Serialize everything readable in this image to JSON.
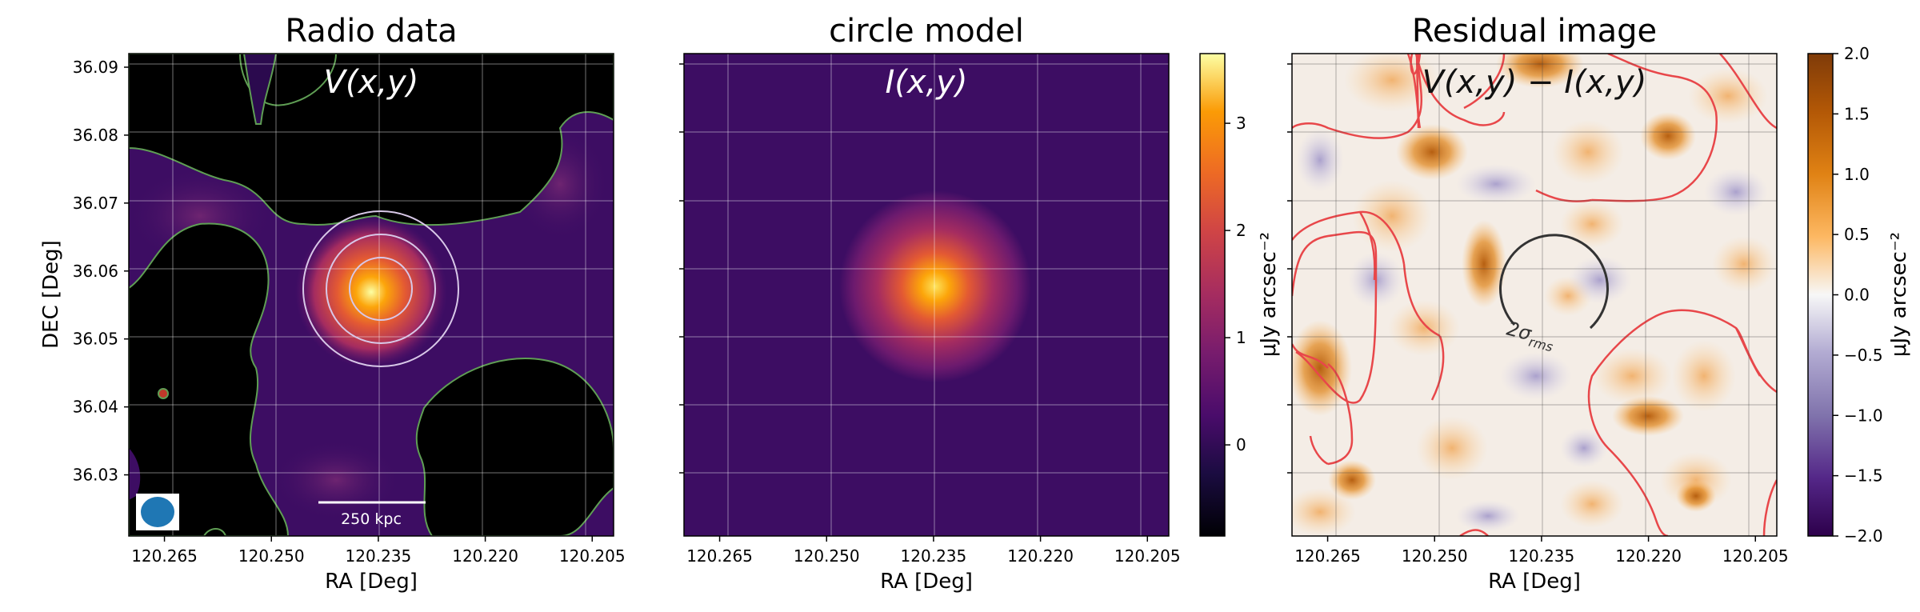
{
  "chart_data": [
    {
      "type": "heatmap",
      "title": "Radio data",
      "annotation": "V(x,y)",
      "xlabel": "RA [Deg]",
      "ylabel": "DEC [Deg]",
      "xlim": [
        120.27,
        120.202
      ],
      "ylim": [
        36.021,
        36.092
      ],
      "xticks": [
        "120.265",
        "120.250",
        "120.235",
        "120.220",
        "120.205"
      ],
      "yticks": [
        "36.09",
        "36.08",
        "36.07",
        "36.06",
        "36.05",
        "36.04",
        "36.03"
      ],
      "grid": true,
      "colormap": "inferno",
      "source_center": [
        120.2347,
        36.0568
      ],
      "contour_color": "#5f9e54",
      "circle_color": "#d8c8e8",
      "beam_color": "#1f77b4",
      "scalebar_label": "250 kpc"
    },
    {
      "type": "heatmap",
      "title": "circle model",
      "annotation": "I(x,y)",
      "xlabel": "RA [Deg]",
      "xlim": [
        120.27,
        120.202
      ],
      "xticks": [
        "120.265",
        "120.250",
        "120.235",
        "120.220",
        "120.205"
      ],
      "grid": true,
      "colormap": "inferno",
      "source_center": [
        120.2347,
        36.0568
      ],
      "colorbar": {
        "label": "μJy arcsec⁻²",
        "range": [
          -0.85,
          3.65
        ],
        "ticks": [
          "0",
          "1",
          "2",
          "3"
        ]
      }
    },
    {
      "type": "heatmap",
      "title": "Residual image",
      "annotation": "V(x,y) − I(x,y)",
      "xlabel": "RA [Deg]",
      "xlim": [
        120.27,
        120.202
      ],
      "xticks": [
        "120.265",
        "120.250",
        "120.235",
        "120.220",
        "120.205"
      ],
      "grid": true,
      "colormap": "PuOr_r",
      "contour_color": "#e8474a",
      "circle_label": "2σ",
      "circle_label_sub": "rms",
      "colorbar": {
        "label": "μJy arcsec⁻²",
        "range": [
          -2.0,
          2.0
        ],
        "ticks": [
          "2.0",
          "1.5",
          "1.0",
          "0.5",
          "0.0",
          "−0.5",
          "−1.0",
          "−1.5",
          "−2.0"
        ]
      }
    }
  ]
}
